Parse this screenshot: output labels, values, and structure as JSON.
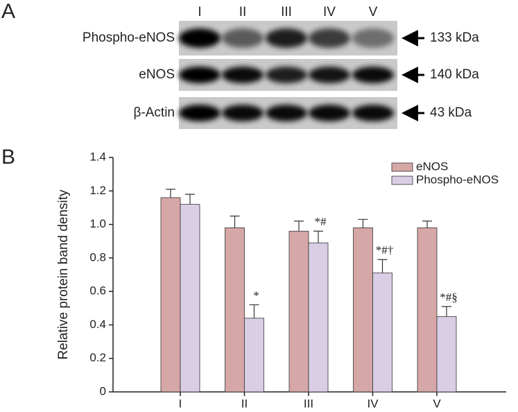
{
  "panel_a": {
    "label": "A",
    "lanes": [
      "I",
      "II",
      "III",
      "IV",
      "V"
    ],
    "rows": [
      {
        "name": "Phospho-eNOS",
        "size": "133 kDa"
      },
      {
        "name": "eNOS",
        "size": "140 kDa"
      },
      {
        "name": "β-Actin",
        "size": "43 kDa"
      }
    ]
  },
  "chart_data": {
    "type": "bar",
    "panel_label": "B",
    "y_label": "Relative protein band density",
    "categories": [
      "I",
      "II",
      "III",
      "IV",
      "V"
    ],
    "series": [
      {
        "name": "eNOS",
        "color": "#d5a7a6",
        "values": [
          1.16,
          0.98,
          0.96,
          0.98,
          0.98
        ],
        "errors": [
          0.05,
          0.07,
          0.06,
          0.05,
          0.04
        ],
        "annotations": [
          null,
          null,
          null,
          null,
          null
        ]
      },
      {
        "name": "Phospho-eNOS",
        "color": "#d9cee6",
        "values": [
          1.12,
          0.44,
          0.89,
          0.71,
          0.45
        ],
        "errors": [
          0.06,
          0.08,
          0.07,
          0.08,
          0.06
        ],
        "annotations": [
          null,
          "*",
          "*#",
          "*#†",
          "*#§"
        ]
      }
    ],
    "ylim": [
      0,
      1.4
    ],
    "yticks": [
      0,
      0.2,
      0.4,
      0.6,
      0.8,
      {
        "value": 1,
        "label": "1.0"
      },
      1.2,
      1.4
    ],
    "legend": "top-right",
    "grid": false
  }
}
